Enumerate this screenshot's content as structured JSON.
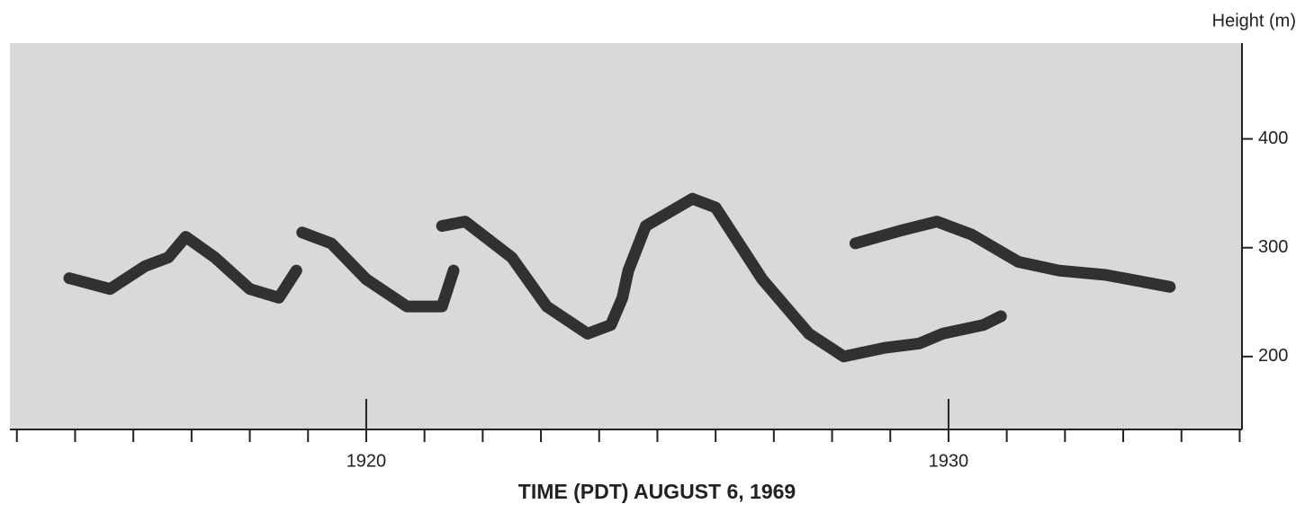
{
  "chart_data": {
    "type": "line",
    "title": "TIME (PDT) AUGUST 6, 1969",
    "y_label": "Height (m)",
    "xlim": [
      1913.88,
      1935.04
    ],
    "xticks": [
      1920,
      1930
    ],
    "minor_xticks": [
      1914,
      1915,
      1916,
      1917,
      1918,
      1919,
      1921,
      1922,
      1923,
      1924,
      1925,
      1926,
      1927,
      1928,
      1929,
      1931,
      1932,
      1933,
      1934,
      1935
    ],
    "ylim": [
      133,
      488
    ],
    "yticks": [
      200,
      300,
      400
    ],
    "color": "#1e1e1e",
    "background": "#d9d9d7",
    "series": [
      {
        "x": [
          1914.9,
          1915.6,
          1916.2,
          1916.6,
          1916.9,
          1917.4,
          1918.0,
          1918.5,
          1918.8
        ],
        "values": [
          272,
          262,
          283,
          291,
          310,
          291,
          262,
          254,
          279
        ]
      },
      {
        "x": [
          1918.9,
          1919.4,
          1920.0,
          1920.7,
          1921.3,
          1921.5
        ],
        "values": [
          314,
          304,
          271,
          246,
          246,
          279
        ]
      },
      {
        "x": [
          1921.3,
          1921.7,
          1922.5,
          1923.1,
          1923.8,
          1924.2,
          1924.4,
          1924.5,
          1924.8,
          1925.6,
          1926.0,
          1926.8,
          1927.6,
          1928.2,
          1928.9,
          1929.5,
          1929.9,
          1930.6,
          1930.9
        ],
        "values": [
          320,
          324,
          291,
          246,
          221,
          229,
          254,
          279,
          320,
          345,
          337,
          271,
          221,
          200,
          208,
          212,
          221,
          229,
          237
        ]
      },
      {
        "x": [
          1928.4,
          1929.2,
          1929.8,
          1930.4,
          1931.2,
          1931.9,
          1932.7,
          1933.8
        ],
        "values": [
          304,
          316,
          324,
          312,
          287,
          279,
          275,
          264
        ]
      }
    ]
  }
}
